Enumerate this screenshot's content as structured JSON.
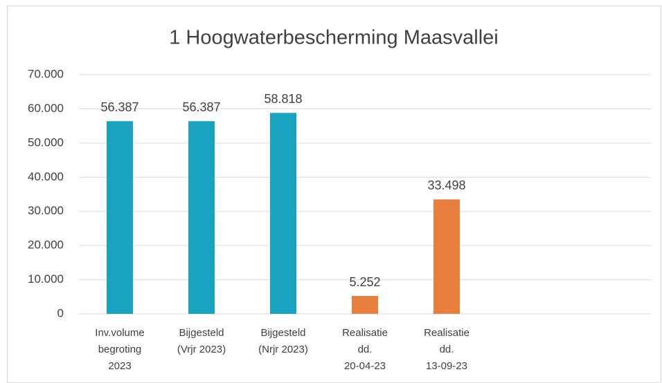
{
  "chart_data": {
    "type": "bar",
    "title": "1 Hoogwaterbescherming Maasvallei",
    "categories": [
      "Inv.volume\nbegroting\n2023",
      "Bijgesteld\n(Vrjr 2023)",
      "Bijgesteld\n(Nrjr 2023)",
      "Realisatie\ndd.\n20-04-23",
      "Realisatie\ndd.\n13-09-23",
      null,
      null
    ],
    "values": [
      56387,
      56387,
      58818,
      5252,
      33498,
      null,
      null
    ],
    "value_labels": [
      "56.387",
      "56.387",
      "58.818",
      "5.252",
      "33.498",
      null,
      null
    ],
    "colors": [
      "#1aa3c1",
      "#1aa3c1",
      "#1aa3c1",
      "#e97f3e",
      "#e97f3e",
      null,
      null
    ],
    "ylim": [
      0,
      70000
    ],
    "yticks": [
      0,
      {
        "value": 10000,
        "label": "10.000"
      },
      {
        "value": 20000,
        "label": "20.000"
      },
      {
        "value": 30000,
        "label": "30.000"
      },
      {
        "value": 40000,
        "label": "40.000"
      },
      {
        "value": 50000,
        "label": "50.000"
      },
      {
        "value": 60000,
        "label": "60.000"
      },
      {
        "value": 70000,
        "label": "70.000"
      }
    ],
    "grid": true
  }
}
